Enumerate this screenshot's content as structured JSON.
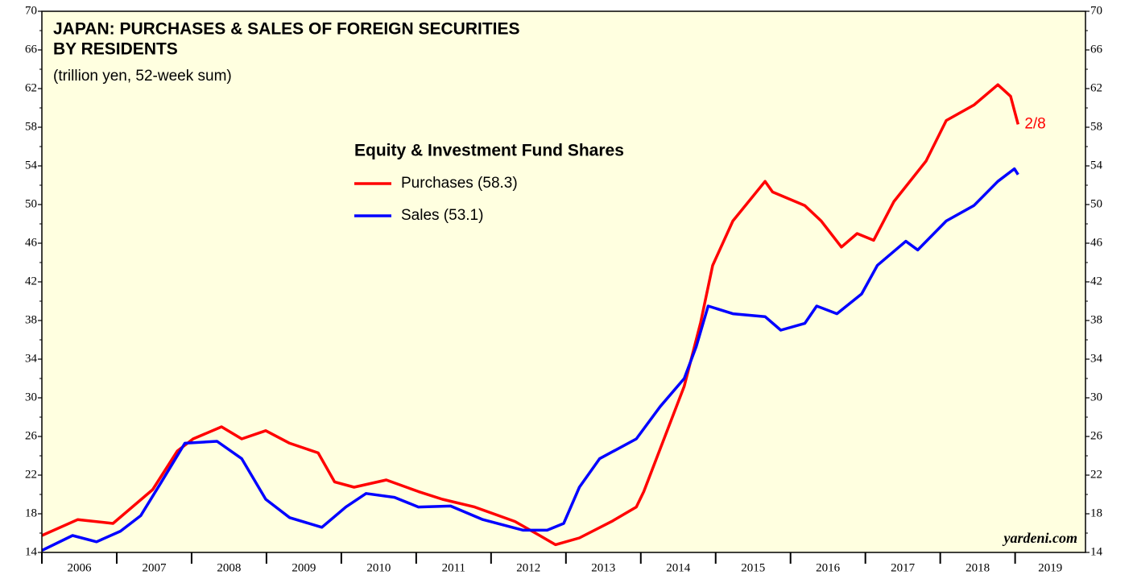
{
  "chart_data": {
    "type": "line",
    "title": [
      "JAPAN: PURCHASES & SALES OF FOREIGN SECURITIES",
      "BY RESIDENTS"
    ],
    "subtitle": "(trillion yen, 52-week sum)",
    "legend_title": "Equity & Investment Fund Shares",
    "annotation": "2/8",
    "source": "yardeni.com",
    "xlim": [
      2006,
      2019.94
    ],
    "xticks": [
      2006,
      2007,
      2008,
      2009,
      2010,
      2011,
      2012,
      2013,
      2014,
      2015,
      2016,
      2017,
      2018,
      2019
    ],
    "ylim": [
      14,
      70
    ],
    "yticks": [
      14,
      18,
      22,
      26,
      30,
      34,
      38,
      42,
      46,
      50,
      54,
      58,
      62,
      66,
      70
    ],
    "y2lim": [
      14,
      70
    ],
    "y2ticks": [
      14,
      18,
      22,
      26,
      30,
      34,
      38,
      42,
      46,
      50,
      54,
      58,
      62,
      66,
      70
    ],
    "series": [
      {
        "name": "Purchases (58.3)",
        "color": "#ff0000",
        "x": [
          2006.0,
          2006.48,
          2006.95,
          2007.48,
          2007.81,
          2008.02,
          2008.4,
          2008.67,
          2008.99,
          2009.31,
          2009.69,
          2009.91,
          2010.17,
          2010.6,
          2011.03,
          2011.35,
          2011.78,
          2012.32,
          2012.65,
          2012.86,
          2013.18,
          2013.61,
          2013.94,
          2014.04,
          2014.31,
          2014.58,
          2014.8,
          2014.96,
          2015.23,
          2015.66,
          2015.76,
          2016.19,
          2016.41,
          2016.68,
          2016.89,
          2017.11,
          2017.38,
          2017.81,
          2018.08,
          2018.45,
          2018.77,
          2018.94,
          2019.04
        ],
        "values": [
          15.75,
          17.4,
          17.0,
          20.5,
          24.5,
          25.75,
          27.0,
          25.75,
          26.6,
          25.3,
          24.3,
          21.3,
          20.75,
          21.5,
          20.3,
          19.5,
          18.7,
          17.2,
          15.75,
          14.8,
          15.5,
          17.2,
          18.7,
          20.3,
          25.75,
          31.2,
          37.8,
          43.7,
          48.3,
          52.4,
          51.3,
          49.9,
          48.3,
          45.6,
          47.0,
          46.3,
          50.3,
          54.5,
          58.7,
          60.3,
          62.4,
          61.2,
          58.3
        ]
      },
      {
        "name": "Sales (53.1)",
        "color": "#0000ff",
        "x": [
          2006.0,
          2006.41,
          2006.73,
          2007.05,
          2007.32,
          2007.59,
          2007.91,
          2008.34,
          2008.67,
          2008.99,
          2009.31,
          2009.74,
          2010.06,
          2010.33,
          2010.71,
          2011.03,
          2011.46,
          2011.89,
          2012.43,
          2012.75,
          2012.97,
          2013.18,
          2013.45,
          2013.94,
          2014.26,
          2014.58,
          2014.74,
          2014.9,
          2015.23,
          2015.66,
          2015.87,
          2016.19,
          2016.35,
          2016.62,
          2016.95,
          2017.16,
          2017.54,
          2017.7,
          2018.08,
          2018.45,
          2018.77,
          2018.99,
          2019.04
        ],
        "values": [
          14.2,
          15.75,
          15.1,
          16.2,
          17.8,
          21.2,
          25.3,
          25.5,
          23.7,
          19.5,
          17.6,
          16.6,
          18.7,
          20.1,
          19.7,
          18.7,
          18.8,
          17.4,
          16.3,
          16.3,
          17.0,
          20.75,
          23.7,
          25.75,
          29.1,
          32.0,
          35.3,
          39.5,
          38.7,
          38.4,
          37.0,
          37.7,
          39.5,
          38.7,
          40.75,
          43.7,
          46.2,
          45.3,
          48.3,
          49.9,
          52.4,
          53.7,
          53.1
        ]
      }
    ]
  }
}
